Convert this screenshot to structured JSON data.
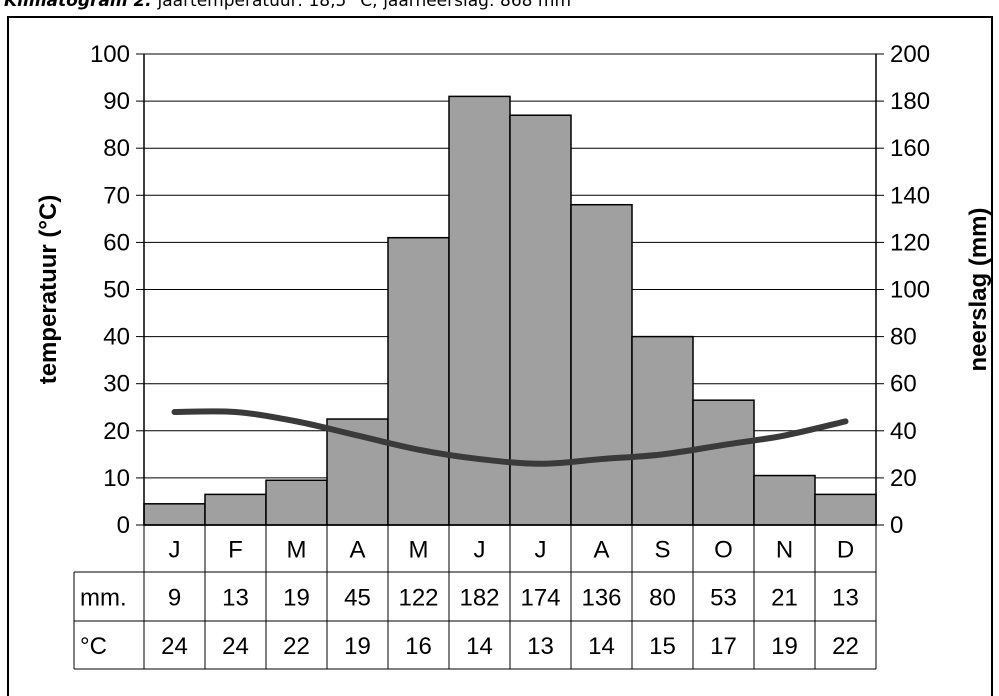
{
  "caption": {
    "bold_part": "Klimatogram 2:",
    "rest": " jaartemperatuur: 18,5 °C; jaarneerslag: 868 mm"
  },
  "chart_data": {
    "type": "bar",
    "categories": [
      "J",
      "F",
      "M",
      "A",
      "M",
      "J",
      "J",
      "A",
      "S",
      "O",
      "N",
      "D"
    ],
    "series": [
      {
        "type": "bar",
        "axis": "right",
        "values": [
          9,
          13,
          19,
          45,
          122,
          182,
          174,
          136,
          80,
          53,
          21,
          13
        ]
      },
      {
        "type": "line",
        "axis": "left",
        "values": [
          24,
          24,
          22,
          19,
          16,
          14,
          13,
          14,
          15,
          17,
          19,
          22
        ]
      }
    ],
    "ylabel_left": "temperatuur (°C)",
    "ylabel_right": "neerslag (mm)",
    "ylim_left": [
      0,
      100
    ],
    "ylim_right": [
      0,
      200
    ],
    "yticks_left": [
      "0",
      "10",
      "20",
      "30",
      "40",
      "50",
      "60",
      "70",
      "80",
      "90",
      "100"
    ],
    "yticks_right": [
      "0",
      "20",
      "40",
      "60",
      "80",
      "100",
      "120",
      "140",
      "160",
      "180",
      "200"
    ],
    "grid": true,
    "bar_color": "#a0a0a0",
    "line_color": "#3a3a3a",
    "table": {
      "row_labels": [
        "mm.",
        "°C"
      ],
      "mm": [
        "9",
        "13",
        "19",
        "45",
        "122",
        "182",
        "174",
        "136",
        "80",
        "53",
        "21",
        "13"
      ],
      "c": [
        "24",
        "24",
        "22",
        "19",
        "16",
        "14",
        "13",
        "14",
        "15",
        "17",
        "19",
        "22"
      ]
    }
  }
}
